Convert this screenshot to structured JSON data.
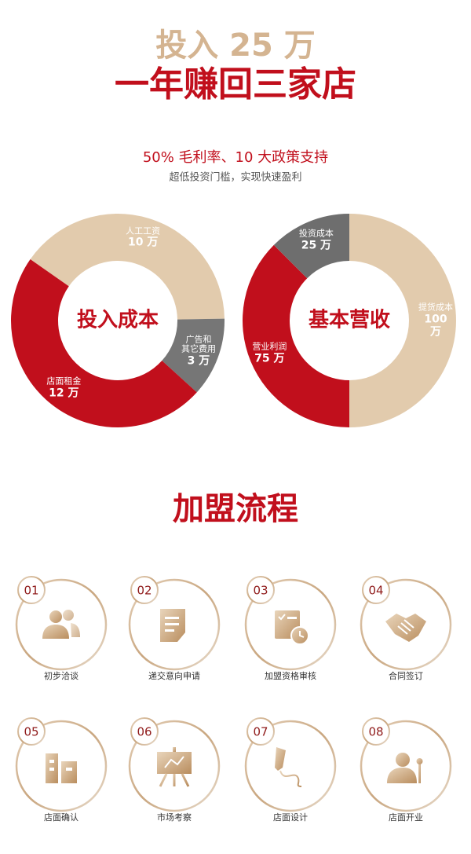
{
  "header": {
    "title_line1": "投入 25 万",
    "title_line2": "一年赚回三家店",
    "subtitle": "50% 毛利率、10 大政策支持",
    "tagline": "超低投资门槛，实现快速盈利"
  },
  "chart_data": [
    {
      "type": "pie",
      "donut": true,
      "title": "投入成本",
      "categories": [
        "人工工资",
        "广告和\n其它费用",
        "店面租金"
      ],
      "values": [
        10,
        3,
        12
      ],
      "value_labels": [
        "10 万",
        "3 万",
        "12 万"
      ],
      "colors": [
        "#e2cbad",
        "#767676",
        "#c10f1c"
      ]
    },
    {
      "type": "pie",
      "donut": true,
      "title": "基本营收",
      "categories": [
        "提货成本",
        "营业利润",
        "投资成本"
      ],
      "values": [
        100,
        75,
        25
      ],
      "value_labels": [
        "100 万",
        "75 万",
        "25 万"
      ],
      "colors": [
        "#e2cbad",
        "#c10f1c",
        "#6e6e6e"
      ]
    }
  ],
  "process": {
    "title": "加盟流程",
    "steps": [
      {
        "number": "01",
        "label": "初步洽谈"
      },
      {
        "number": "02",
        "label": "递交意向申请"
      },
      {
        "number": "03",
        "label": "加盟资格审核"
      },
      {
        "number": "04",
        "label": "合同签订"
      },
      {
        "number": "05",
        "label": "店面确认"
      },
      {
        "number": "06",
        "label": "市场考察"
      },
      {
        "number": "07",
        "label": "店面设计"
      },
      {
        "number": "08",
        "label": "店面开业"
      }
    ]
  }
}
